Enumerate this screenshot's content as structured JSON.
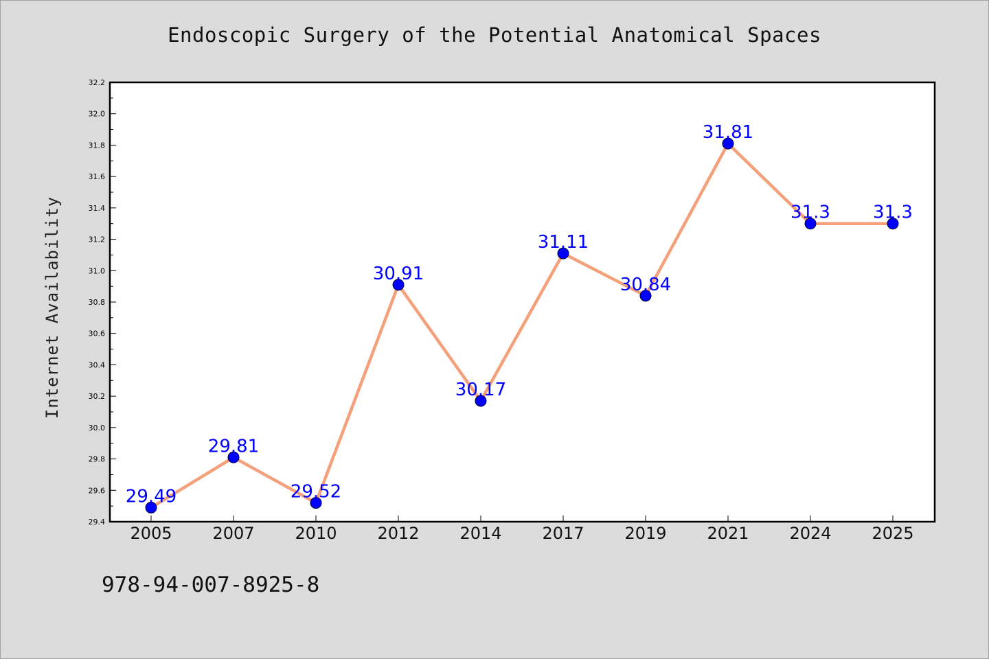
{
  "chart_data": {
    "type": "line",
    "title": "Endoscopic Surgery of the Potential Anatomical Spaces",
    "xlabel": "",
    "ylabel": "Internet Availability",
    "categories": [
      "2005",
      "2007",
      "2010",
      "2012",
      "2014",
      "2017",
      "2019",
      "2021",
      "2024",
      "2025"
    ],
    "values": [
      29.49,
      29.81,
      29.52,
      30.91,
      30.17,
      31.11,
      30.84,
      31.81,
      31.3,
      31.3
    ],
    "data_labels": [
      "29.49",
      "29.81",
      "29.52",
      "30.91",
      "30.17",
      "31.11",
      "30.84",
      "31.81",
      "31.3",
      "31.3"
    ],
    "ylim": [
      29.4,
      32.2
    ],
    "yticks": [
      "29.4",
      "29.6",
      "29.8",
      "30.0",
      "30.2",
      "30.4",
      "30.6",
      "30.8",
      "31.0",
      "31.2",
      "31.4",
      "31.6",
      "31.8",
      "32.0",
      "32.2"
    ],
    "grid": false,
    "line_color": "#f4a07a",
    "marker_color": "#0000ff",
    "label_color": "#0000ff"
  },
  "footer": {
    "code": "978-94-007-8925-8"
  }
}
